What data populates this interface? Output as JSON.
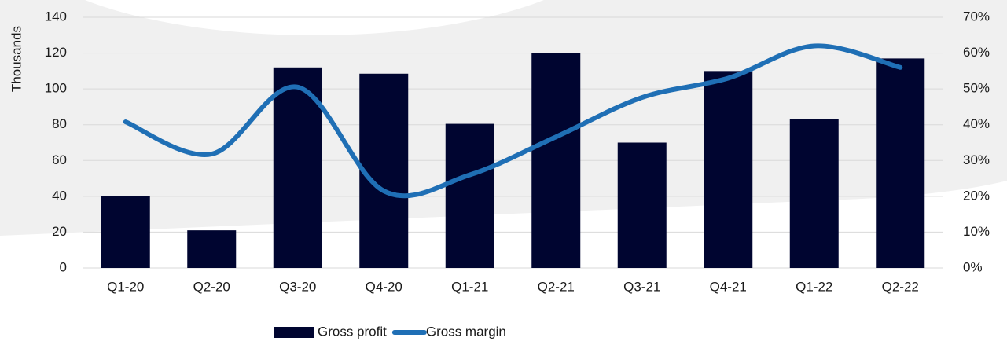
{
  "chart_data": {
    "type": "bar",
    "y_label": "Thousands",
    "categories": [
      "Q1-20",
      "Q2-20",
      "Q3-20",
      "Q4-20",
      "Q1-21",
      "Q2-21",
      "Q3-21",
      "Q4-21",
      "Q1-22",
      "Q2-22"
    ],
    "series": [
      {
        "name": "Gross profit",
        "type": "bar",
        "color": "#000530",
        "values": [
          40,
          21,
          112,
          108.5,
          80.5,
          120,
          70,
          110,
          83,
          117
        ]
      },
      {
        "name": "Gross margin",
        "type": "line",
        "axis": "y2",
        "color": "#1f6fb5",
        "smooth": true,
        "values": [
          40.8,
          31.8,
          50.5,
          21.5,
          26,
          36.6,
          47.6,
          53,
          62,
          56
        ]
      }
    ],
    "ylim": [
      0,
      140
    ],
    "yticks": [
      0,
      20,
      40,
      60,
      80,
      100,
      120,
      140
    ],
    "y2lim": [
      0,
      70
    ],
    "y2ticks": [
      {
        "value": 0,
        "label": "0%"
      },
      {
        "value": 10,
        "label": "10%"
      },
      {
        "value": 20,
        "label": "20%"
      },
      {
        "value": 30,
        "label": "30%"
      },
      {
        "value": 40,
        "label": "40%"
      },
      {
        "value": 50,
        "label": "50%"
      },
      {
        "value": 60,
        "label": "60%"
      },
      {
        "value": 70,
        "label": "70%"
      }
    ],
    "grid": true,
    "legend": "bottom"
  }
}
